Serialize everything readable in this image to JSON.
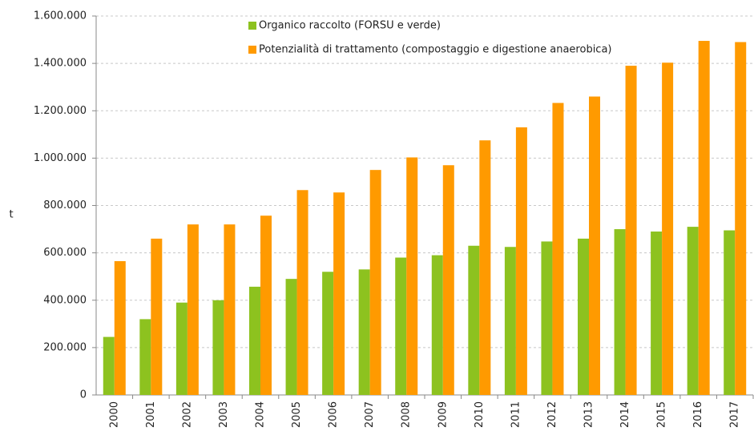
{
  "chart_data": {
    "type": "bar",
    "y_label": "t",
    "categories": [
      "2000",
      "2001",
      "2002",
      "2003",
      "2004",
      "2005",
      "2006",
      "2007",
      "2008",
      "2009",
      "2010",
      "2011",
      "2012",
      "2013",
      "2014",
      "2015",
      "2016",
      "2017"
    ],
    "series": [
      {
        "name": "Organico raccolto (FORSU e verde)",
        "color": "#8dc21f",
        "values": [
          245000,
          320000,
          390000,
          400000,
          457000,
          490000,
          520000,
          530000,
          580000,
          590000,
          630000,
          625000,
          648000,
          660000,
          700000,
          690000,
          710000,
          695000
        ]
      },
      {
        "name": "Potenzialità di trattamento (compostaggio e digestione anaerobica)",
        "color": "#ff9a00",
        "values": [
          565000,
          660000,
          720000,
          720000,
          757000,
          865000,
          855000,
          950000,
          1003000,
          970000,
          1075000,
          1130000,
          1233000,
          1260000,
          1390000,
          1403000,
          1495000,
          1490000
        ]
      }
    ],
    "ylim": [
      0,
      1600000
    ],
    "yticks": [
      0,
      {
        "value": 200000,
        "label": "200.000"
      },
      {
        "value": 400000,
        "label": "400.000"
      },
      {
        "value": 600000,
        "label": "600.000"
      },
      {
        "value": 800000,
        "label": "800.000"
      },
      {
        "value": 1000000,
        "label": "1.000.000"
      },
      {
        "value": 1200000,
        "label": "1.200.000"
      },
      {
        "value": 1400000,
        "label": "1.400.000"
      },
      {
        "value": 1600000,
        "label": "1.600.000"
      }
    ],
    "grid": true,
    "legend": "top"
  }
}
